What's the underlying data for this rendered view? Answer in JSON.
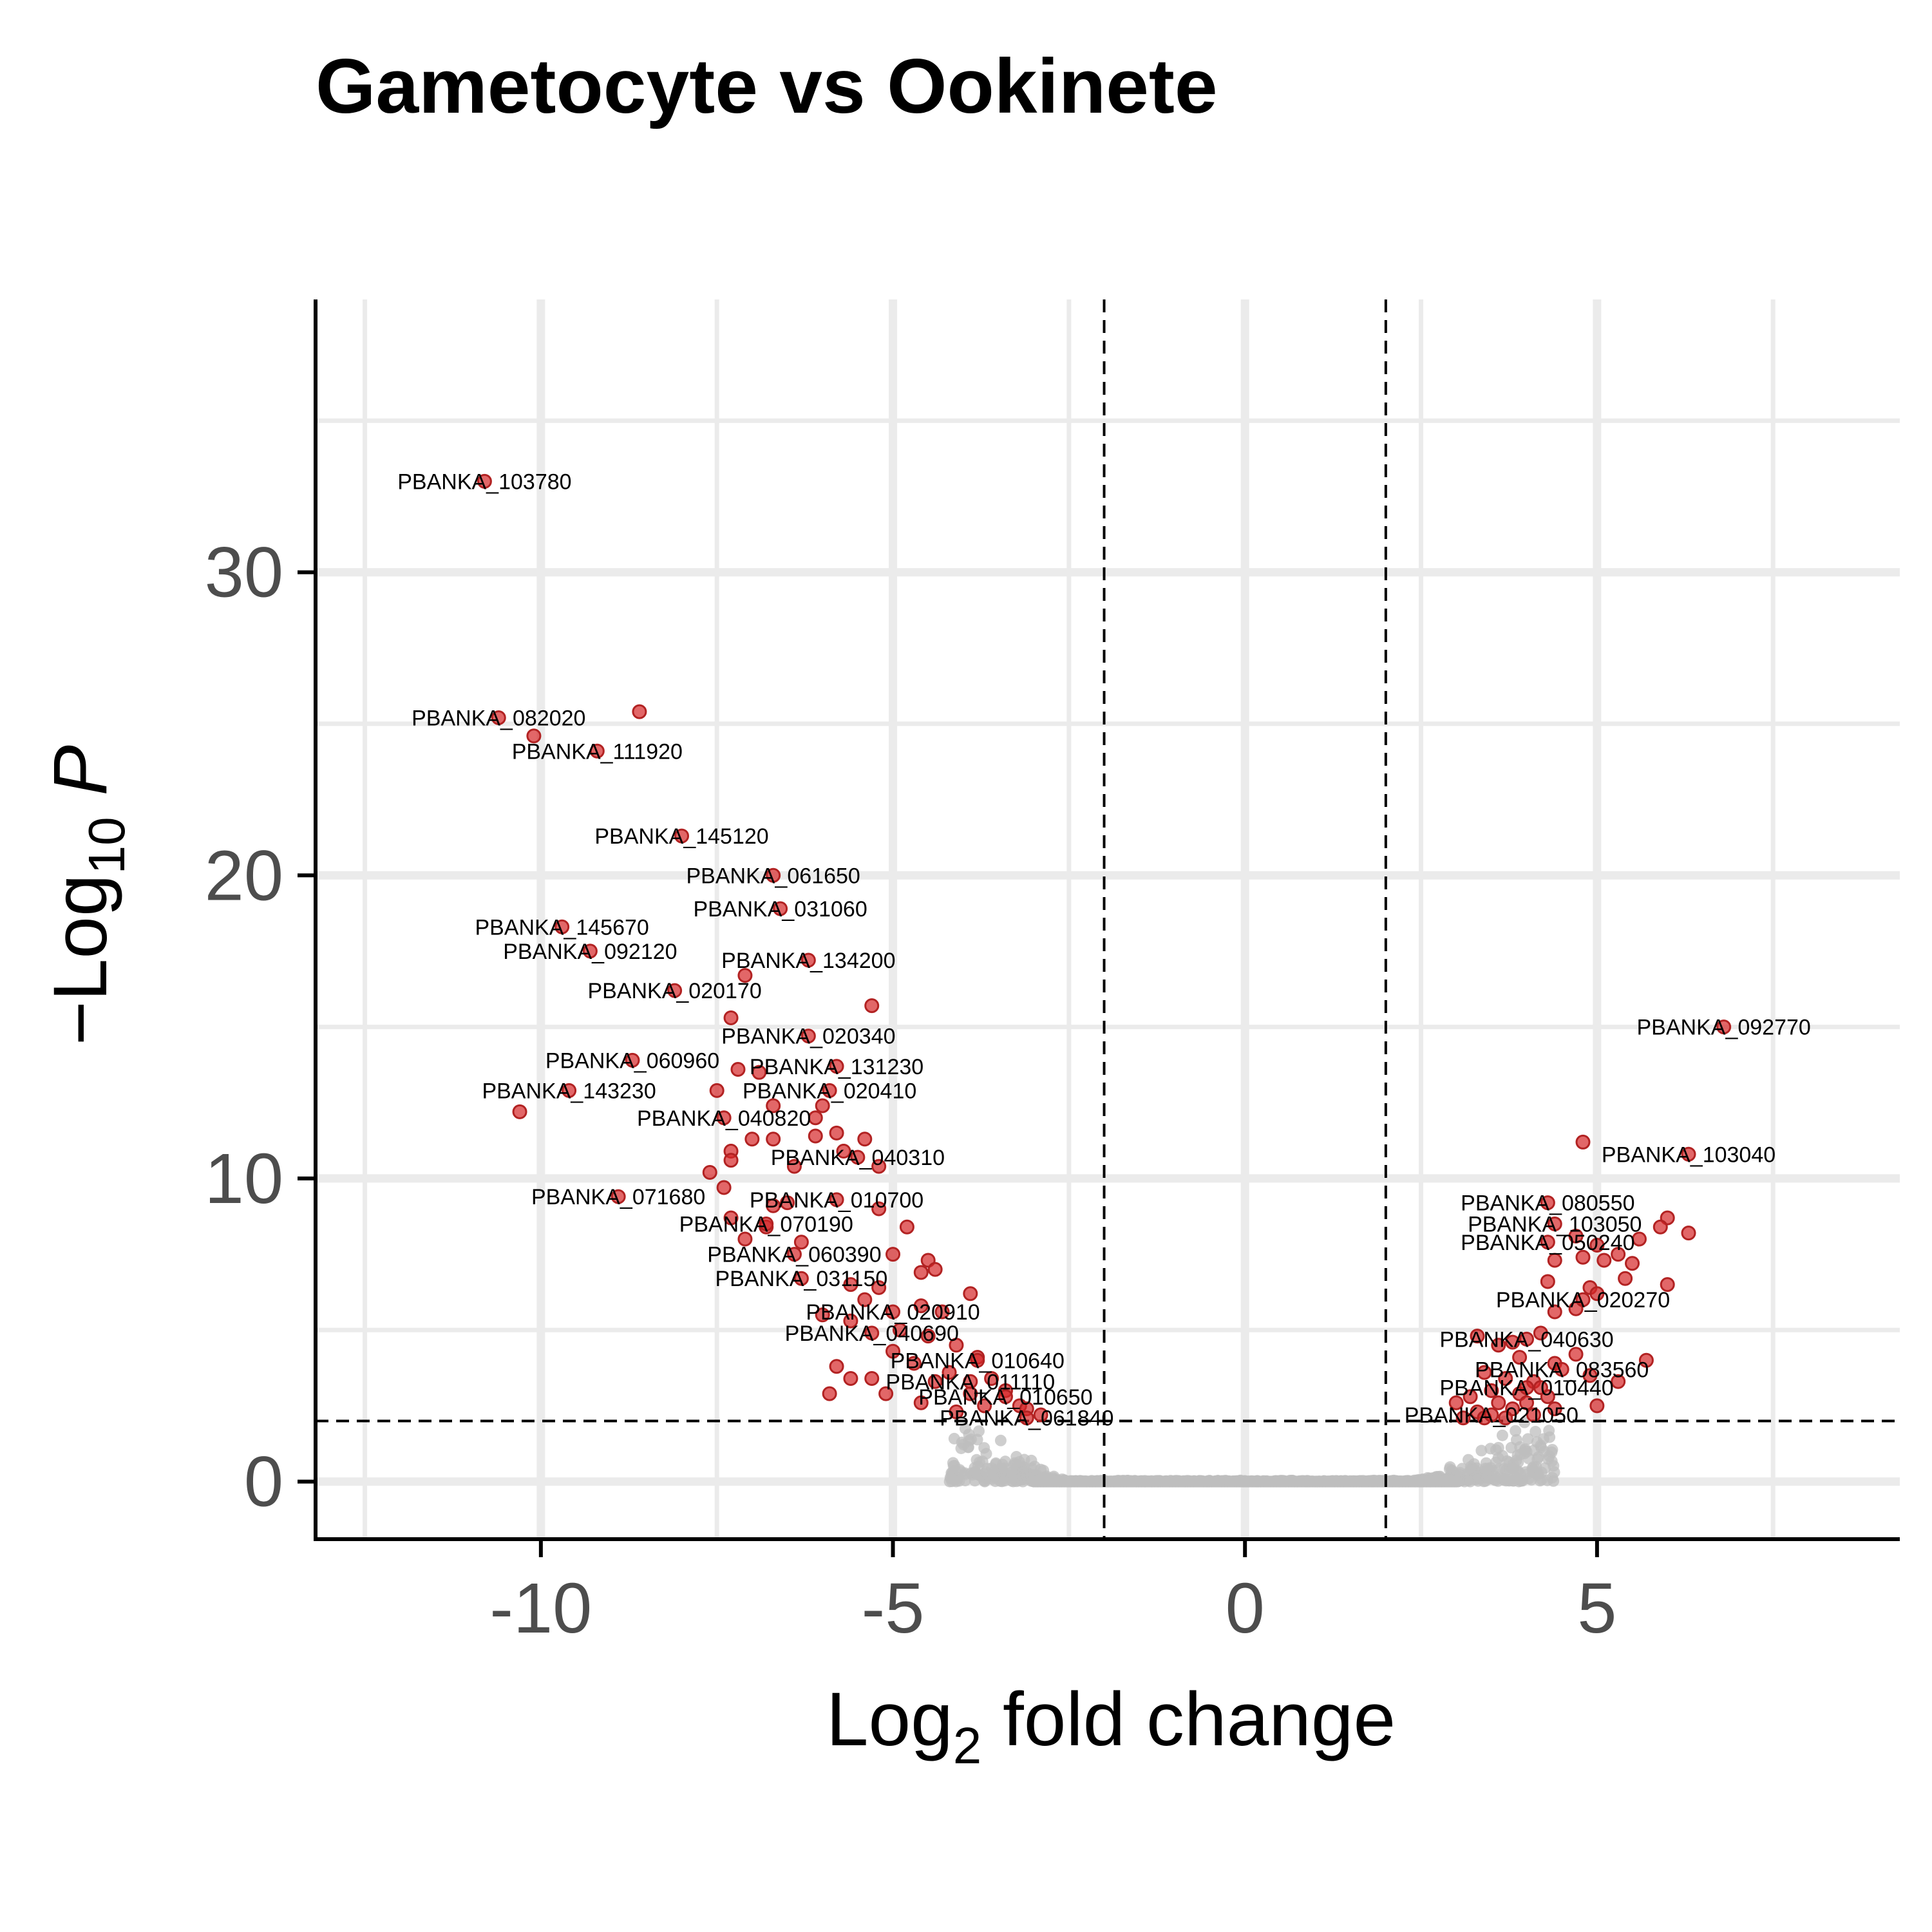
{
  "chart_data": {
    "type": "scatter",
    "title": "Gametocyte vs Ookinete",
    "xlabel": {
      "prefix": "Log",
      "sub": "2",
      "suffix": " fold change"
    },
    "ylabel": {
      "prefix": "−Log",
      "sub": "10",
      "suffix": " P"
    },
    "xlim": [
      -13.2,
      9.3
    ],
    "ylim": [
      -1.9,
      39
    ],
    "x_ticks": [
      -10,
      -5,
      0,
      5
    ],
    "x_tick_labels": [
      "-10",
      "-5",
      "0",
      "5"
    ],
    "y_ticks": [
      0,
      10,
      20,
      30
    ],
    "y_tick_labels": [
      "0",
      "10",
      "20",
      "30"
    ],
    "minor_x": [
      -12.5,
      -7.5,
      -2.5,
      2.5,
      7.5
    ],
    "minor_y": [
      5,
      15,
      25,
      35
    ],
    "grid": true,
    "fc_cutoff": 2,
    "p_cutoff": 2,
    "colors": {
      "significant": "#d62728",
      "nonsignificant": "#bebebe",
      "grid": "#ebebeb",
      "axis": "#000000"
    },
    "labeled_points": [
      {
        "gene": "PBANKA_103780",
        "x": -10.8,
        "y": 33.0
      },
      {
        "gene": "PBANKA_082020",
        "x": -10.6,
        "y": 25.2
      },
      {
        "gene": "PBANKA_111920",
        "x": -9.2,
        "y": 24.1
      },
      {
        "gene": "PBANKA_145120",
        "x": -8.0,
        "y": 21.3
      },
      {
        "gene": "PBANKA_061650",
        "x": -6.7,
        "y": 20.0
      },
      {
        "gene": "PBANKA_031060",
        "x": -6.6,
        "y": 18.9
      },
      {
        "gene": "PBANKA_145670",
        "x": -9.7,
        "y": 18.3
      },
      {
        "gene": "PBANKA_092120",
        "x": -9.3,
        "y": 17.5
      },
      {
        "gene": "PBANKA_134200",
        "x": -6.2,
        "y": 17.2
      },
      {
        "gene": "PBANKA_020170",
        "x": -8.1,
        "y": 16.2
      },
      {
        "gene": "PBANKA_020340",
        "x": -6.2,
        "y": 14.7
      },
      {
        "gene": "PBANKA_060960",
        "x": -8.7,
        "y": 13.9
      },
      {
        "gene": "PBANKA_131230",
        "x": -5.8,
        "y": 13.7
      },
      {
        "gene": "PBANKA_143230",
        "x": -9.6,
        "y": 12.9
      },
      {
        "gene": "PBANKA_020410",
        "x": -5.9,
        "y": 12.9
      },
      {
        "gene": "PBANKA_040820",
        "x": -7.4,
        "y": 12.0
      },
      {
        "gene": "PBANKA_040310",
        "x": -5.5,
        "y": 10.7
      },
      {
        "gene": "PBANKA_103040",
        "x": 6.3,
        "y": 10.8
      },
      {
        "gene": "PBANKA_071680",
        "x": -8.9,
        "y": 9.4
      },
      {
        "gene": "PBANKA_010700",
        "x": -5.8,
        "y": 9.3
      },
      {
        "gene": "PBANKA_080550",
        "x": 4.3,
        "y": 9.2
      },
      {
        "gene": "PBANKA_070190",
        "x": -6.8,
        "y": 8.5
      },
      {
        "gene": "PBANKA_103050",
        "x": 4.4,
        "y": 8.5
      },
      {
        "gene": "PBANKA_050240",
        "x": 4.3,
        "y": 7.9
      },
      {
        "gene": "PBANKA_060390",
        "x": -6.4,
        "y": 7.5
      },
      {
        "gene": "PBANKA_031150",
        "x": -6.3,
        "y": 6.7
      },
      {
        "gene": "PBANKA_020270",
        "x": 4.8,
        "y": 6.0
      },
      {
        "gene": "PBANKA_020910",
        "x": -5.0,
        "y": 5.6
      },
      {
        "gene": "PBANKA_040690",
        "x": -5.3,
        "y": 4.9
      },
      {
        "gene": "PBANKA_040630",
        "x": 4.0,
        "y": 4.7
      },
      {
        "gene": "PBANKA_010640",
        "x": -3.8,
        "y": 4.0
      },
      {
        "gene": "PBANKA_083560",
        "x": 4.5,
        "y": 3.7
      },
      {
        "gene": "PBANKA_011110",
        "x": -3.9,
        "y": 3.3
      },
      {
        "gene": "PBANKA_010440",
        "x": 4.0,
        "y": 3.1
      },
      {
        "gene": "PBANKA_010650",
        "x": -3.4,
        "y": 2.8
      },
      {
        "gene": "PBANKA_021050",
        "x": 3.5,
        "y": 2.2
      },
      {
        "gene": "PBANKA_061840",
        "x": -3.1,
        "y": 2.1
      },
      {
        "gene": "PBANKA_092770",
        "x": 6.8,
        "y": 15.0
      }
    ],
    "other_significant_points": [
      [
        -8.6,
        25.4
      ],
      [
        -10.1,
        24.6
      ],
      [
        -10.3,
        12.2
      ],
      [
        -7.3,
        15.3
      ],
      [
        -5.3,
        15.7
      ],
      [
        -7.1,
        16.7
      ],
      [
        -7.2,
        13.6
      ],
      [
        -6.9,
        13.5
      ],
      [
        -7.5,
        12.9
      ],
      [
        -6.7,
        12.4
      ],
      [
        -6.1,
        12.0
      ],
      [
        -6.0,
        12.4
      ],
      [
        -7.0,
        11.3
      ],
      [
        -6.7,
        11.3
      ],
      [
        -6.1,
        11.4
      ],
      [
        -5.8,
        11.5
      ],
      [
        -5.4,
        11.3
      ],
      [
        -5.7,
        10.9
      ],
      [
        -7.3,
        10.9
      ],
      [
        -7.3,
        10.6
      ],
      [
        -6.4,
        10.4
      ],
      [
        -5.2,
        10.4
      ],
      [
        -7.6,
        10.2
      ],
      [
        -7.4,
        9.7
      ],
      [
        -6.7,
        9.1
      ],
      [
        -6.5,
        9.2
      ],
      [
        -5.2,
        9.0
      ],
      [
        -6.8,
        8.4
      ],
      [
        -7.3,
        8.7
      ],
      [
        -6.3,
        7.9
      ],
      [
        -7.1,
        8.0
      ],
      [
        -4.8,
        8.4
      ],
      [
        -5.0,
        7.5
      ],
      [
        -4.5,
        7.3
      ],
      [
        -4.6,
        6.9
      ],
      [
        -4.4,
        7.0
      ],
      [
        -5.6,
        6.5
      ],
      [
        -5.2,
        6.4
      ],
      [
        -5.4,
        6.0
      ],
      [
        -3.9,
        6.2
      ],
      [
        -4.6,
        5.8
      ],
      [
        -4.3,
        5.6
      ],
      [
        -6.0,
        5.5
      ],
      [
        -5.6,
        5.3
      ],
      [
        -4.9,
        5.0
      ],
      [
        -4.5,
        4.8
      ],
      [
        -4.1,
        4.5
      ],
      [
        -3.8,
        4.1
      ],
      [
        -5.8,
        3.8
      ],
      [
        -5.6,
        3.4
      ],
      [
        -5.3,
        3.4
      ],
      [
        -5.1,
        2.9
      ],
      [
        -4.4,
        3.3
      ],
      [
        -4.2,
        3.6
      ],
      [
        -3.6,
        3.4
      ],
      [
        -3.4,
        3.0
      ],
      [
        -3.2,
        2.5
      ],
      [
        -4.6,
        2.6
      ],
      [
        -5.9,
        2.9
      ],
      [
        -3.7,
        2.5
      ],
      [
        -2.9,
        2.2
      ],
      [
        -3.1,
        2.4
      ],
      [
        -4.1,
        2.3
      ],
      [
        -3.9,
        2.9
      ],
      [
        -4.7,
        3.9
      ],
      [
        -5.0,
        4.3
      ],
      [
        4.8,
        11.2
      ],
      [
        6.0,
        8.7
      ],
      [
        5.9,
        8.4
      ],
      [
        6.3,
        8.2
      ],
      [
        5.6,
        8.0
      ],
      [
        5.0,
        7.8
      ],
      [
        4.7,
        8.1
      ],
      [
        5.3,
        7.5
      ],
      [
        5.1,
        7.3
      ],
      [
        5.5,
        7.2
      ],
      [
        4.4,
        7.3
      ],
      [
        4.8,
        7.4
      ],
      [
        4.3,
        6.6
      ],
      [
        6.0,
        6.5
      ],
      [
        5.4,
        6.7
      ],
      [
        4.9,
        6.4
      ],
      [
        5.0,
        6.2
      ],
      [
        4.7,
        5.7
      ],
      [
        4.4,
        5.6
      ],
      [
        3.3,
        4.8
      ],
      [
        3.8,
        4.6
      ],
      [
        4.2,
        4.9
      ],
      [
        3.6,
        4.5
      ],
      [
        4.7,
        4.2
      ],
      [
        5.7,
        4.0
      ],
      [
        3.9,
        4.1
      ],
      [
        4.4,
        3.9
      ],
      [
        4.9,
        3.5
      ],
      [
        3.4,
        3.6
      ],
      [
        3.7,
        3.4
      ],
      [
        4.1,
        3.3
      ],
      [
        5.3,
        3.3
      ],
      [
        3.5,
        3.0
      ],
      [
        3.9,
        2.9
      ],
      [
        4.3,
        2.8
      ],
      [
        3.2,
        2.8
      ],
      [
        3.6,
        2.6
      ],
      [
        3.8,
        2.4
      ],
      [
        4.4,
        2.4
      ],
      [
        5.0,
        2.5
      ],
      [
        3.3,
        2.3
      ],
      [
        4.1,
        2.2
      ],
      [
        3.4,
        2.1
      ],
      [
        3.7,
        2.1
      ],
      [
        4.0,
        2.6
      ],
      [
        4.2,
        3.1
      ],
      [
        3.0,
        2.6
      ],
      [
        3.1,
        2.1
      ]
    ],
    "nonsignificant_hint": "dense gray points along y≈0 between x≈-4.2 and x≈4.4"
  }
}
